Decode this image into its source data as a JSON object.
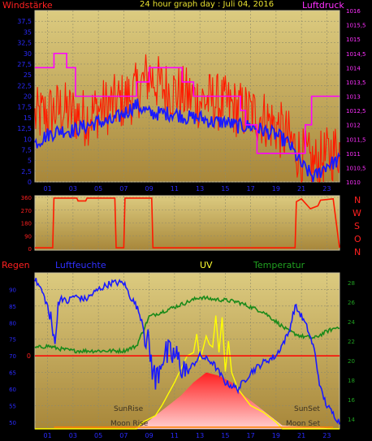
{
  "header": {
    "left_label": "Windstärke",
    "title": "24 hour graph day : Juli 04, 2016",
    "right_label": "Luftdruck"
  },
  "panel2": {
    "compass": [
      "N",
      "W",
      "S",
      "O",
      "N"
    ]
  },
  "panel3": {
    "label_rain": "Regen",
    "label_humidity": "Luftfeuchte",
    "label_uv": "UV",
    "label_temp": "Temperatur",
    "label_sunrise": "SunRise",
    "label_sunset": "SunSet",
    "label_moonrise": "Moon Rise",
    "label_moonset": "Moon Set"
  },
  "colors": {
    "background": "#000000",
    "panel_top": "#d9c77a",
    "panel_bottom": "#b08e3a",
    "wind": "#ff1a00",
    "wind_avg": "#1a1aff",
    "pressure": "#ff00ff",
    "humidity": "#1a1aff",
    "temperature": "#1a8a1a",
    "uv": "#ffff00",
    "radiation": "#ff2020",
    "rain_line": "#ff0000",
    "grid": "#8f8a6a",
    "label_red": "#ff2020",
    "label_blue": "#2a2aff",
    "label_yellow": "#ffff30",
    "label_green": "#20a020",
    "tick_text": "#2a2aff",
    "pressure_text": "#ff30ff"
  },
  "chart_data": [
    {
      "type": "line",
      "name": "wind-pressure",
      "x_unit": "hour",
      "xticks": [
        "01",
        "03",
        "05",
        "07",
        "09",
        "11",
        "13",
        "15",
        "17",
        "19",
        "21",
        "23"
      ],
      "yticks_left": [
        "0",
        "2,5",
        "5",
        "7,5",
        "10",
        "12,5",
        "15",
        "17,5",
        "20",
        "22,5",
        "25",
        "27,5",
        "30",
        "32,5",
        "35",
        "37,5"
      ],
      "yticks_right": [
        "1010",
        "1010,5",
        "1011",
        "1011,5",
        "1012",
        "1012,5",
        "1013",
        "1013,5",
        "1014",
        "1014,5",
        "1015",
        "1015,5",
        "1016"
      ],
      "ylim_left": [
        0,
        40
      ],
      "ylim_right": [
        1010,
        1016
      ],
      "series": [
        {
          "role": "wind-gust",
          "x": [
            0,
            1,
            2,
            3,
            4,
            5,
            6,
            7,
            8,
            9,
            10,
            11,
            12,
            13,
            14,
            15,
            16,
            17,
            18,
            19,
            20,
            21,
            22,
            23,
            24
          ],
          "y": [
            15,
            16,
            17,
            16,
            15,
            17,
            18,
            19,
            21,
            25,
            22,
            21,
            20,
            19,
            19,
            18,
            17,
            16,
            15,
            13,
            10,
            6,
            4,
            6,
            8
          ]
        },
        {
          "role": "wind-avg",
          "x": [
            0,
            1,
            2,
            3,
            4,
            5,
            6,
            7,
            8,
            9,
            10,
            11,
            12,
            13,
            14,
            15,
            16,
            17,
            18,
            19,
            20,
            21,
            22,
            23,
            24
          ],
          "y": [
            9,
            11,
            12,
            12,
            13,
            14,
            14,
            16,
            18,
            16,
            16,
            16,
            15,
            15,
            14,
            14,
            13,
            13,
            12,
            11,
            9,
            4,
            1,
            4,
            5
          ]
        },
        {
          "role": "pressure",
          "x": [
            0,
            0.8,
            1.5,
            2.5,
            3.2,
            5.5,
            7.5,
            8.0,
            9.0,
            9.6,
            11.6,
            12.5,
            15.0,
            16.2,
            16.6,
            17.5,
            18.8,
            20.3,
            21.3,
            21.8,
            23.2,
            24
          ],
          "y": [
            1014,
            1014,
            1014.5,
            1014,
            1013,
            1013,
            1013,
            1013.5,
            1014,
            1014,
            1013.5,
            1013,
            1013,
            1012.5,
            1012,
            1011,
            1011,
            1011,
            1012,
            1013,
            1013,
            1013
          ]
        }
      ]
    },
    {
      "type": "line",
      "name": "wind-direction",
      "x_unit": "hour",
      "yticks": [
        "0",
        "90",
        "180",
        "270",
        "360"
      ],
      "ylim": [
        0,
        360
      ],
      "series": [
        {
          "role": "direction",
          "x": [
            0,
            1.4,
            1.5,
            3.3,
            3.4,
            4.0,
            4.1,
            5.5,
            6.3,
            6.4,
            7.0,
            7.1,
            8.5,
            9.2,
            9.3,
            9.6,
            9.7,
            20.5,
            20.6,
            21.0,
            21.5,
            21.7,
            22.3,
            22.5,
            23.5,
            24
          ],
          "y": [
            5,
            5,
            355,
            355,
            335,
            335,
            355,
            355,
            355,
            5,
            5,
            355,
            355,
            355,
            5,
            5,
            5,
            5,
            330,
            350,
            300,
            280,
            300,
            340,
            350,
            5
          ]
        }
      ]
    },
    {
      "type": "line",
      "name": "humidity-temperature-uv",
      "x_unit": "hour",
      "yticks_left": [
        "50",
        "55",
        "60",
        "65",
        "70",
        "75",
        "80",
        "85",
        "90"
      ],
      "yticks_right": [
        "14",
        "16",
        "18",
        "20",
        "22",
        "24",
        "26",
        "28"
      ],
      "ylim_left": [
        48,
        95
      ],
      "ylim_right": [
        13,
        29
      ],
      "rain_value": 0,
      "series": [
        {
          "role": "humidity",
          "x": [
            0,
            0.5,
            1.0,
            1.5,
            2.0,
            2.5,
            3.0,
            4.0,
            5.0,
            6.0,
            7.0,
            7.5,
            8.0,
            8.5,
            9.0,
            9.5,
            10.0,
            11.0,
            12.0,
            13.0,
            14.0,
            15.0,
            16.0,
            17.0,
            18.0,
            19.0,
            20.0,
            20.5,
            21.0,
            21.5,
            22.0,
            22.5,
            23.0,
            24.0
          ],
          "y": [
            93,
            90,
            85,
            75,
            88,
            86,
            88,
            87,
            90,
            92,
            92,
            88,
            85,
            80,
            72,
            62,
            70,
            70,
            65,
            70,
            68,
            62,
            60,
            65,
            68,
            70,
            77,
            85,
            82,
            78,
            72,
            60,
            55,
            50
          ]
        },
        {
          "role": "temperature",
          "x": [
            0,
            1,
            2,
            3,
            4,
            5,
            6,
            7,
            8,
            9,
            10,
            11,
            12,
            13,
            14,
            15,
            16,
            17,
            18,
            19,
            20,
            21,
            22,
            23,
            24
          ],
          "y": [
            21.3,
            21.5,
            21.2,
            21.0,
            21.0,
            21.0,
            21.0,
            21.0,
            21.5,
            24.5,
            25.0,
            25.5,
            26.0,
            26.5,
            26.3,
            26.2,
            26.0,
            25.5,
            25.0,
            24.0,
            23.0,
            22.5,
            22.3,
            23.0,
            23.5
          ]
        },
        {
          "role": "uv",
          "x": [
            0,
            8.0,
            8.5,
            9.5,
            10.0,
            11.0,
            12.0,
            13.0,
            13.5,
            14.0,
            14.5,
            15.0,
            16.0,
            17.0,
            18.0,
            19.0,
            19.5,
            24.0
          ],
          "y": [
            48,
            48,
            50,
            52,
            55,
            62,
            70,
            72,
            78,
            74,
            78,
            70,
            60,
            55,
            53,
            50,
            48,
            48
          ]
        },
        {
          "role": "radiation",
          "x": [
            0,
            7.8,
            8.5,
            9.5,
            10.5,
            11.5,
            12.5,
            13.5,
            14.5,
            15.5,
            16.5,
            17.5,
            18.5,
            19.5,
            24.0
          ],
          "y": [
            48,
            48,
            49,
            52,
            55,
            58,
            62,
            65,
            64,
            62,
            58,
            55,
            52,
            49,
            48
          ]
        }
      ]
    }
  ]
}
